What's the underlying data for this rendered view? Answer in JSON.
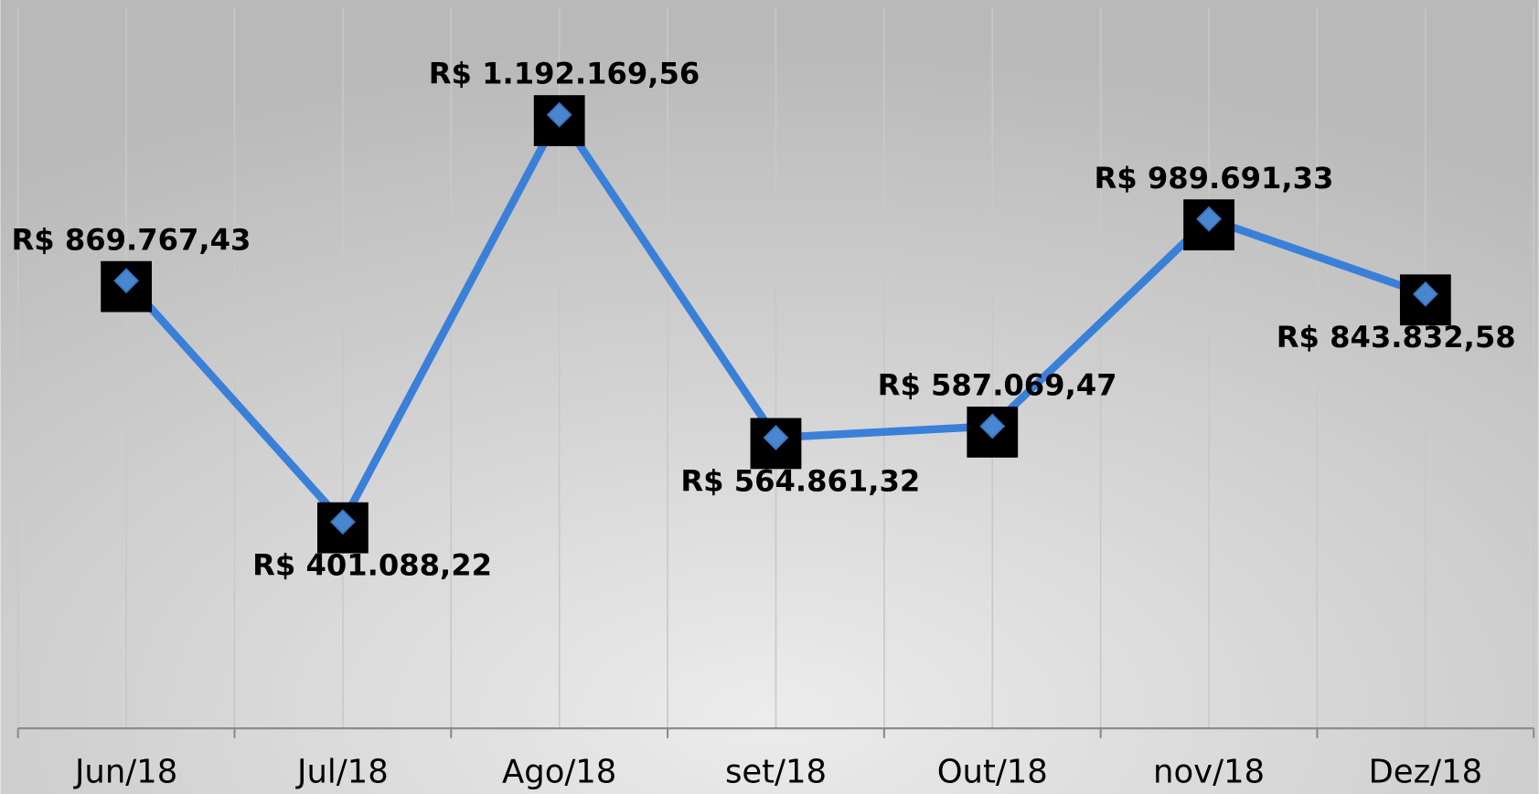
{
  "chart_data": {
    "type": "line",
    "categories": [
      "Jun/18",
      "Jul/18",
      "Ago/18",
      "set/18",
      "Out/18",
      "nov/18",
      "Dez/18"
    ],
    "series": [
      {
        "color": "#3a80d9",
        "values": [
          869767.43,
          401088.22,
          1192169.56,
          564861.32,
          587069.47,
          989691.33,
          843832.58
        ],
        "value_labels": [
          "R$ 869.767,43",
          "R$ 401.088,22",
          "R$ 1.192.169,56",
          "R$ 564.861,32",
          "R$ 587.069,47",
          "R$ 989.691,33",
          "R$ 843.832,58"
        ]
      }
    ],
    "ylim": [
      0,
      1400000
    ],
    "grid": true
  }
}
